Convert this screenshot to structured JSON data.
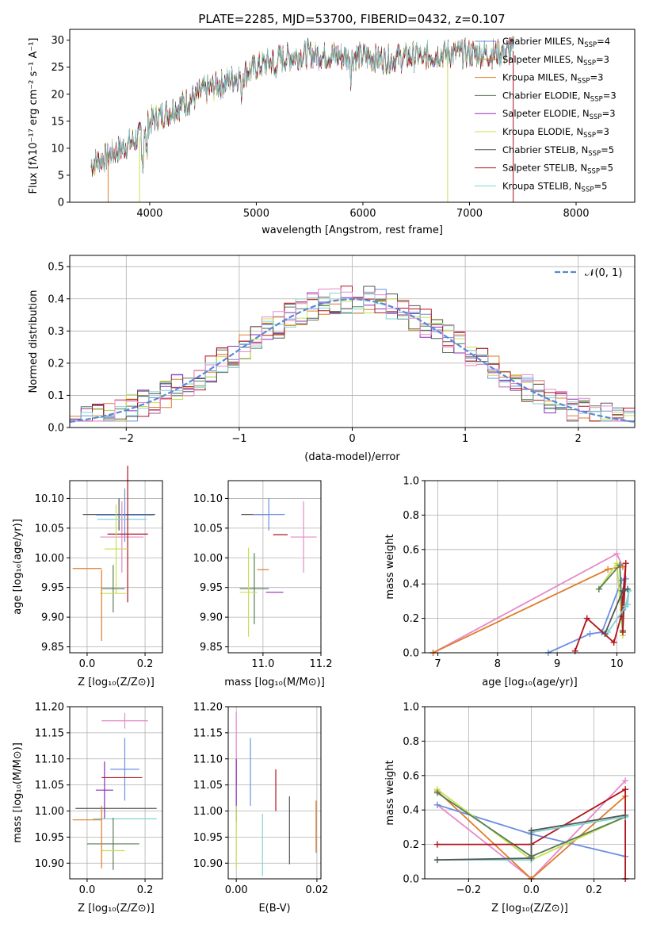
{
  "title": "PLATE=2285, MJD=53700, FIBERID=0432, z=0.107",
  "colors": {
    "Chabrier MILES": "#6d8fe0",
    "Salpeter MILES": "#e07b28",
    "Kroupa MILES": "#e07b28",
    "Chabrier ELODIE": "#567d56",
    "Salpeter ELODIE": "#8e2fb5",
    "Kroupa ELODIE": "#c8df52",
    "Chabrier STELIB": "#555555",
    "Salpeter STELIB": "#b0141a",
    "Kroupa STELIB": "#7fd3d3",
    "extra_pink": "#e58ac9",
    "normal_curve": "#5b87d6"
  },
  "chart_data": [
    {
      "id": "spectrum",
      "type": "line",
      "xlabel": "wavelength [Angstrom, rest frame]",
      "ylabel": "Flux [fλ10⁻¹⁷ erg cm⁻² s⁻¹ A⁻¹]",
      "xlim": [
        3250,
        8550
      ],
      "ylim": [
        0,
        32
      ],
      "xticks": [
        4000,
        5000,
        6000,
        7000,
        8000
      ],
      "yticks": [
        0,
        5,
        10,
        15,
        20,
        25,
        30
      ],
      "legend_position": "upper right",
      "legend": [
        {
          "label": "Chabrier MILES, N",
          "sub": "SSP",
          "tail": "=4",
          "key": "Chabrier MILES"
        },
        {
          "label": "Salpeter MILES, N",
          "sub": "SSP",
          "tail": "=3",
          "key": "Salpeter MILES"
        },
        {
          "label": "Kroupa MILES, N",
          "sub": "SSP",
          "tail": "=3",
          "key": "Kroupa MILES"
        },
        {
          "label": "Chabrier ELODIE, N",
          "sub": "SSP",
          "tail": "=3",
          "key": "Chabrier ELODIE"
        },
        {
          "label": "Salpeter ELODIE, N",
          "sub": "SSP",
          "tail": "=3",
          "key": "Salpeter ELODIE"
        },
        {
          "label": "Kroupa ELODIE, N",
          "sub": "SSP",
          "tail": "=3",
          "key": "Kroupa ELODIE"
        },
        {
          "label": "Chabrier STELIB, N",
          "sub": "SSP",
          "tail": "=5",
          "key": "Chabrier STELIB"
        },
        {
          "label": "Salpeter STELIB, N",
          "sub": "SSP",
          "tail": "=5",
          "key": "Salpeter STELIB"
        },
        {
          "label": "Kroupa STELIB, N",
          "sub": "SSP",
          "tail": "=5",
          "key": "Kroupa STELIB"
        }
      ],
      "envelope_x": [
        3450,
        3550,
        3700,
        3900,
        4000,
        4100,
        4300,
        4500,
        4800,
        5000,
        5200,
        5500,
        5800,
        6000,
        6200,
        6500,
        6800,
        7000,
        7200,
        7400
      ],
      "envelope_y": [
        7,
        8,
        9.5,
        12,
        15,
        16,
        18,
        20.5,
        23,
        25,
        26.5,
        27.5,
        27,
        27,
        26.5,
        27,
        27.5,
        27.5,
        27.5,
        28
      ],
      "xrange_data": [
        3450,
        7420
      ],
      "dips": [
        {
          "x": 3610,
          "y": 0,
          "key": "Salpeter MILES"
        },
        {
          "x": 3905,
          "y": 0,
          "key": "Kroupa ELODIE"
        },
        {
          "x": 6795,
          "y": 0,
          "key": "Kroupa ELODIE"
        },
        {
          "x": 7410,
          "y": 0,
          "key": "Salpeter STELIB"
        }
      ]
    },
    {
      "id": "residuals",
      "type": "histogram",
      "xlabel": "(data-model)/error",
      "ylabel": "Normed distribution",
      "xlim": [
        -2.5,
        2.5
      ],
      "ylim": [
        0,
        0.535
      ],
      "xticks": [
        -2,
        -1,
        0,
        1,
        2
      ],
      "yticks": [
        0.0,
        0.1,
        0.2,
        0.3,
        0.4,
        0.5
      ],
      "grid": true,
      "legend": "𝒩(0, 1)",
      "legend_position": "upper right",
      "bin_width": 0.1
    },
    {
      "id": "age-vs-Z",
      "type": "errorbar",
      "xlabel": "Z [log₁₀(Z/Z⊙)]",
      "ylabel": "age  [log₁₀(age/yr)]",
      "xlim": [
        -0.06,
        0.26
      ],
      "ylim": [
        9.84,
        10.13
      ],
      "xticks": [
        0.0,
        0.2
      ],
      "yticks": [
        9.85,
        9.9,
        9.95,
        10.0,
        10.05,
        10.1
      ],
      "grid": true,
      "points": [
        {
          "x": 0.11,
          "y": 10.073,
          "xerr": 0.125,
          "yerr": 0.027,
          "key": "Chabrier STELIB"
        },
        {
          "x": 0.13,
          "y": 10.072,
          "xerr": 0.1,
          "yerr": 0.045,
          "key": "Chabrier MILES"
        },
        {
          "x": 0.12,
          "y": 10.065,
          "xerr": 0.085,
          "yerr": 0.02,
          "key": "Kroupa STELIB"
        },
        {
          "x": 0.12,
          "y": 10.035,
          "xerr": 0.075,
          "yerr": 0.06,
          "key": "extra_pink"
        },
        {
          "x": 0.14,
          "y": 10.04,
          "xerr": 0.07,
          "yerr": 0.115,
          "key": "Salpeter STELIB"
        },
        {
          "x": 0.1,
          "y": 10.015,
          "xerr": 0.04,
          "yerr": 0.075,
          "key": "Kroupa ELODIE"
        },
        {
          "x": 0.0,
          "y": 9.982,
          "xerr": 0.05,
          "yerr": 0.0,
          "key": "Salpeter MILES"
        },
        {
          "x": 0.09,
          "y": 9.948,
          "xerr": 0.04,
          "yerr": 0.04,
          "key": "Chabrier ELODIE"
        },
        {
          "x": 0.09,
          "y": 9.94,
          "xerr": 0.045,
          "yerr": 0.0,
          "key": "Kroupa ELODIE"
        },
        {
          "x": 0.05,
          "y": 9.92,
          "xerr": 0.0,
          "yerr": 0.06,
          "key": "Salpeter MILES"
        }
      ]
    },
    {
      "id": "age-vs-mass",
      "type": "errorbar",
      "xlabel": "mass [log₁₀(M/M⊙)]",
      "xlim": [
        10.88,
        11.2
      ],
      "ylim": [
        9.84,
        10.13
      ],
      "xticks": [
        11.0,
        11.2
      ],
      "yticks": [
        9.85,
        9.9,
        9.95,
        10.0,
        10.05,
        10.1
      ],
      "grid": true,
      "points": [
        {
          "x": 10.97,
          "y": 10.073,
          "xerr": 0.045,
          "yerr": 0.0,
          "key": "Chabrier STELIB"
        },
        {
          "x": 11.02,
          "y": 10.073,
          "xerr": 0.055,
          "yerr": 0.027,
          "key": "Chabrier MILES"
        },
        {
          "x": 11.14,
          "y": 10.035,
          "xerr": 0.045,
          "yerr": 0.06,
          "key": "extra_pink"
        },
        {
          "x": 11.06,
          "y": 10.039,
          "xerr": 0.025,
          "yerr": 0.0,
          "key": "Salpeter STELIB"
        },
        {
          "x": 11.0,
          "y": 9.98,
          "xerr": 0.02,
          "yerr": 0.0,
          "key": "Salpeter MILES"
        },
        {
          "x": 10.97,
          "y": 9.948,
          "xerr": 0.05,
          "yerr": 0.06,
          "key": "Chabrier ELODIE"
        },
        {
          "x": 11.04,
          "y": 9.942,
          "xerr": 0.03,
          "yerr": 0.0,
          "key": "Salpeter ELODIE"
        },
        {
          "x": 10.95,
          "y": 9.942,
          "xerr": 0.03,
          "yerr": 0.075,
          "key": "Kroupa ELODIE"
        }
      ]
    },
    {
      "id": "weight-vs-age",
      "type": "line",
      "xlabel": "age  [log₁₀(age/yr)]",
      "ylabel": "mass weight",
      "xlim": [
        6.78,
        10.3
      ],
      "ylim": [
        0,
        1.0
      ],
      "xticks": [
        7,
        8,
        9,
        10
      ],
      "yticks": [
        0.0,
        0.2,
        0.4,
        0.6,
        0.8,
        1.0
      ],
      "grid": true,
      "series": [
        {
          "key": "extra_pink",
          "x": [
            6.92,
            10.0,
            10.1
          ],
          "y": [
            0.0,
            0.575,
            0.5
          ]
        },
        {
          "key": "Salpeter MILES",
          "x": [
            6.92,
            9.85,
            10.1
          ],
          "y": [
            0.0,
            0.485,
            0.5
          ]
        },
        {
          "key": "Chabrier MILES",
          "x": [
            8.85,
            9.55,
            9.75,
            10.08,
            10.15,
            10.1
          ],
          "y": [
            0.0,
            0.11,
            0.12,
            0.42,
            0.43,
            0.25
          ]
        },
        {
          "key": "Kroupa ELODIE",
          "x": [
            9.7,
            10.0,
            10.1
          ],
          "y": [
            0.37,
            0.52,
            0.1
          ]
        },
        {
          "key": "Chabrier ELODIE",
          "x": [
            9.7,
            10.05,
            10.1
          ],
          "y": [
            0.37,
            0.51,
            0.13
          ]
        },
        {
          "key": "Salpeter STELIB",
          "x": [
            9.3,
            9.5,
            9.95,
            10.07,
            10.15,
            10.1
          ],
          "y": [
            0.01,
            0.2,
            0.06,
            0.21,
            0.52,
            0.12
          ]
        },
        {
          "key": "Kroupa STELIB",
          "x": [
            9.85,
            10.15,
            10.2,
            10.18
          ],
          "y": [
            0.12,
            0.27,
            0.36,
            0.28
          ]
        },
        {
          "key": "Chabrier STELIB",
          "x": [
            9.8,
            10.1,
            10.18
          ],
          "y": [
            0.11,
            0.36,
            0.37
          ]
        }
      ]
    },
    {
      "id": "mass-vs-Z",
      "type": "errorbar",
      "xlabel": "Z [log₁₀(Z/Z⊙)]",
      "ylabel": "mass [log₁₀(M/M⊙)]",
      "xlim": [
        -0.06,
        0.26
      ],
      "ylim": [
        10.87,
        11.2
      ],
      "xticks": [
        0.0,
        0.2
      ],
      "yticks": [
        10.9,
        10.95,
        11.0,
        11.05,
        11.1,
        11.15,
        11.2
      ],
      "grid": true,
      "points": [
        {
          "x": 0.13,
          "y": 11.173,
          "xerr": 0.08,
          "yerr": 0.015,
          "key": "extra_pink"
        },
        {
          "x": 0.13,
          "y": 11.08,
          "xerr": 0.05,
          "yerr": 0.06,
          "key": "Chabrier MILES"
        },
        {
          "x": 0.12,
          "y": 11.064,
          "xerr": 0.07,
          "yerr": 0.0,
          "key": "Salpeter STELIB"
        },
        {
          "x": 0.06,
          "y": 11.04,
          "xerr": 0.03,
          "yerr": 0.055,
          "key": "Salpeter ELODIE"
        },
        {
          "x": 0.1,
          "y": 11.005,
          "xerr": 0.14,
          "yerr": 0.0,
          "key": "Chabrier STELIB"
        },
        {
          "x": 0.13,
          "y": 10.985,
          "xerr": 0.11,
          "yerr": 0.0,
          "key": "Kroupa STELIB"
        },
        {
          "x": 0.0,
          "y": 10.983,
          "xerr": 0.05,
          "yerr": 0.0,
          "key": "Salpeter MILES"
        },
        {
          "x": 0.09,
          "y": 10.937,
          "xerr": 0.09,
          "yerr": 0.05,
          "key": "Chabrier ELODIE"
        },
        {
          "x": 0.09,
          "y": 10.924,
          "xerr": 0.04,
          "yerr": 0.0,
          "key": "Kroupa ELODIE"
        },
        {
          "x": 0.05,
          "y": 10.95,
          "xerr": 0.0,
          "yerr": 0.06,
          "key": "Salpeter MILES"
        }
      ]
    },
    {
      "id": "mass-vs-ebv",
      "type": "errorbar",
      "xlabel": "E(B-V)",
      "xlim": [
        -0.002,
        0.021
      ],
      "ylim": [
        10.87,
        11.2
      ],
      "xticks": [
        0.0,
        0.02
      ],
      "yticks": [
        10.9,
        10.95,
        11.0,
        11.05,
        11.1,
        11.15,
        11.2
      ],
      "grid": true,
      "points": [
        {
          "x": 0.0,
          "y": 11.12,
          "xerr": 0.0,
          "yerr": 0.07,
          "key": "extra_pink"
        },
        {
          "x": 0.0,
          "y": 11.04,
          "xerr": 0.0,
          "yerr": 0.06,
          "key": "Salpeter ELODIE"
        },
        {
          "x": 0.0,
          "y": 10.95,
          "xerr": 0.0,
          "yerr": 0.06,
          "key": "Kroupa ELODIE"
        },
        {
          "x": 0.0035,
          "y": 11.075,
          "xerr": 0.0,
          "yerr": 0.065,
          "key": "Chabrier MILES"
        },
        {
          "x": 0.0065,
          "y": 10.935,
          "xerr": 0.0,
          "yerr": 0.06,
          "key": "Kroupa STELIB"
        },
        {
          "x": 0.0098,
          "y": 11.04,
          "xerr": 0.0,
          "yerr": 0.04,
          "key": "Salpeter STELIB"
        },
        {
          "x": 0.0132,
          "y": 10.963,
          "xerr": 0.0,
          "yerr": 0.065,
          "key": "Chabrier STELIB"
        },
        {
          "x": 0.0198,
          "y": 10.97,
          "xerr": 0.0,
          "yerr": 0.05,
          "key": "Salpeter MILES"
        }
      ]
    },
    {
      "id": "weight-vs-Z",
      "type": "line",
      "xlabel": "Z [log₁₀(Z/Z⊙)]",
      "ylabel": "mass weight",
      "xlim": [
        -0.34,
        0.33
      ],
      "ylim": [
        0,
        1.0
      ],
      "xticks": [
        -0.2,
        0.0,
        0.2
      ],
      "yticks": [
        0.0,
        0.2,
        0.4,
        0.6,
        0.8,
        1.0
      ],
      "grid": true,
      "series": [
        {
          "key": "extra_pink",
          "x": [
            -0.3,
            0.0,
            0.3
          ],
          "y": [
            0.43,
            0.0,
            0.57
          ]
        },
        {
          "key": "Salpeter MILES",
          "x": [
            -0.3,
            0.0,
            0.3
          ],
          "y": [
            0.51,
            0.0,
            0.48
          ]
        },
        {
          "key": "Chabrier MILES",
          "x": [
            -0.3,
            0.0,
            0.3
          ],
          "y": [
            0.43,
            0.26,
            0.13
          ]
        },
        {
          "key": "Kroupa ELODIE",
          "x": [
            -0.3,
            0.0,
            0.3
          ],
          "y": [
            0.52,
            0.11,
            0.36
          ]
        },
        {
          "key": "Chabrier ELODIE",
          "x": [
            -0.3,
            0.0,
            0.3
          ],
          "y": [
            0.5,
            0.13,
            0.36
          ]
        },
        {
          "key": "Salpeter STELIB",
          "x": [
            -0.3,
            0.0,
            0.3,
            0.3
          ],
          "y": [
            0.2,
            0.2,
            0.52,
            0.0
          ]
        },
        {
          "key": "Kroupa STELIB",
          "x": [
            -0.3,
            0.0,
            0.0,
            0.3
          ],
          "y": [
            0.11,
            0.11,
            0.27,
            0.36
          ]
        },
        {
          "key": "Chabrier STELIB",
          "x": [
            -0.3,
            0.0,
            0.0,
            0.3
          ],
          "y": [
            0.11,
            0.12,
            0.28,
            0.37
          ]
        }
      ]
    }
  ]
}
